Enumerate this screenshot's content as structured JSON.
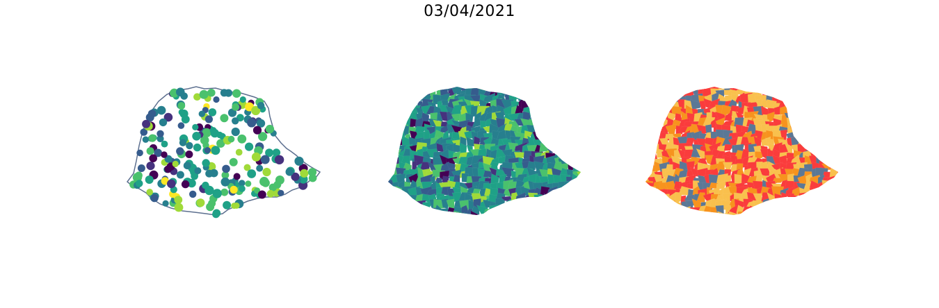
{
  "figure": {
    "title": "03/04/2021"
  },
  "colors": {
    "outline": "#5c6f8f",
    "viridis": [
      "#440154",
      "#46327e",
      "#365c8d",
      "#277f8e",
      "#1fa187",
      "#4ac16d",
      "#a0da39",
      "#fde725"
    ],
    "categorical": [
      "#fa3c3c",
      "#f7931e",
      "#f9c04d",
      "#5b7896"
    ]
  },
  "panels": [
    {
      "id": "points",
      "kind": "proportional-points"
    },
    {
      "id": "choropleth",
      "kind": "continuous-choropleth"
    },
    {
      "id": "classes",
      "kind": "categorical-choropleth"
    }
  ]
}
